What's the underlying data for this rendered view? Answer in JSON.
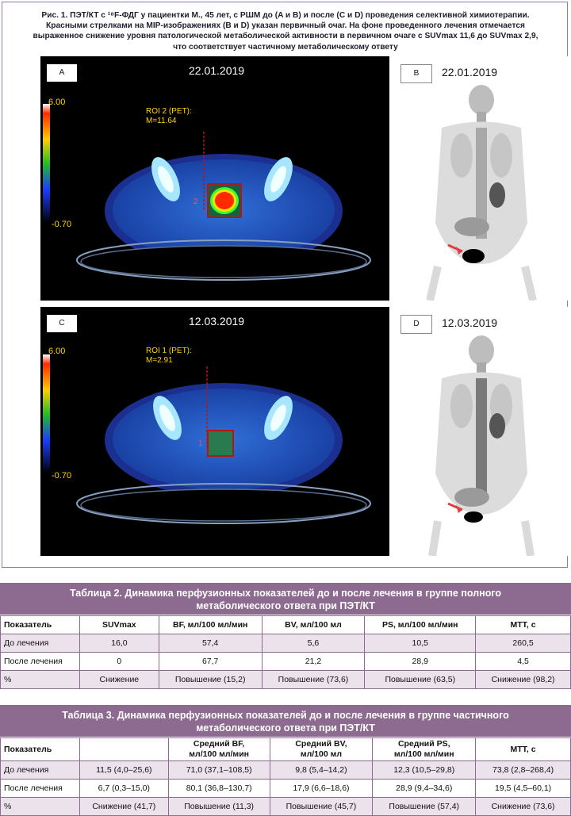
{
  "figure": {
    "caption_line1": "Рис. 1. ПЭТ/КТ с ¹⁸F-ФДГ у пациентки М., 45 лет, с РШМ до (A и B) и после (C и D) проведения селективной химиотерапии.",
    "caption_line2": "Красными стрелками на MIP-изображениях (B и D) указан первичный очаг. На фоне проведенного лечения отмечается",
    "caption_line3": "выраженное снижение уровня патологической метаболической активности в первичном очаге с SUVmax 11,6 до SUVmax 2,9,",
    "caption_line4": "что соответствует частичному метаболическому ответу",
    "panels": {
      "A": {
        "label": "A",
        "date": "22.01.2019",
        "scale_max": "6.00",
        "scale_min": "-0.70",
        "roi_line1": "ROI 2 (PET):",
        "roi_line2": "M=11.64",
        "roi_index": "2"
      },
      "B": {
        "label": "B",
        "date": "22.01.2019"
      },
      "C": {
        "label": "C",
        "date": "12.03.2019",
        "scale_max": "6.00",
        "scale_min": "-0.70",
        "roi_line1": "ROI 1 (PET):",
        "roi_line2": "M=2.91",
        "roi_index": "1"
      },
      "D": {
        "label": "D",
        "date": "12.03.2019"
      }
    },
    "colors": {
      "frame": "#9a7aa8",
      "scale_text": "#ffd400",
      "roi_box": "#b01818"
    }
  },
  "table2": {
    "title_line1": "Таблица 2. Динамика перфузионных показателей до и после лечения в группе полного",
    "title_line2": "метаболического ответа при ПЭТ/КТ",
    "headers": [
      "Показатель",
      "SUVmax",
      "BF, мл/100 мл/мин",
      "BV, мл/100 мл",
      "PS, мл/100 мл/мин",
      "MTT, с"
    ],
    "rows": [
      [
        "До лечения",
        "16,0",
        "57,4",
        "5,6",
        "10,5",
        "260,5"
      ],
      [
        "После лечения",
        "0",
        "67,7",
        "21,2",
        "28,9",
        "4,5"
      ],
      [
        "%",
        "Снижение",
        "Повышение (15,2)",
        "Повышение (73,6)",
        "Повышение (63,5)",
        "Снижение (98,2)"
      ]
    ]
  },
  "table3": {
    "title_line1": "Таблица 3. Динамика перфузионных показателей до и после лечения в группе частичного",
    "title_line2": "метаболического ответа при ПЭТ/КТ",
    "headers": [
      {
        "l1": "Показатель",
        "l2": ""
      },
      {
        "l1": "",
        "l2": ""
      },
      {
        "l1": "Средний BF,",
        "l2": "мл/100 мл/мин"
      },
      {
        "l1": "Средний BV,",
        "l2": "мл/100 мл"
      },
      {
        "l1": "Средний PS,",
        "l2": "мл/100 мл/мин"
      },
      {
        "l1": "MTT, с",
        "l2": ""
      }
    ],
    "rows": [
      [
        "До лечения",
        "11,5 (4,0–25,6)",
        "71,0 (37,1–108,5)",
        "9,8 (5,4–14,2)",
        "12,3 (10,5–29,8)",
        "73,8 (2,8–268,4)"
      ],
      [
        "После лечения",
        "6,7 (0,3–15,0)",
        "80,1 (36,8–130,7)",
        "17,9 (6,6–18,6)",
        "28,9 (9,4–34,6)",
        "19,5 (4,5–60,1)"
      ],
      [
        "%",
        "Снижение (41,7)",
        "Повышение (11,3)",
        "Повышение (45,7)",
        "Повышение (57,4)",
        "Снижение (73,6)"
      ]
    ]
  }
}
